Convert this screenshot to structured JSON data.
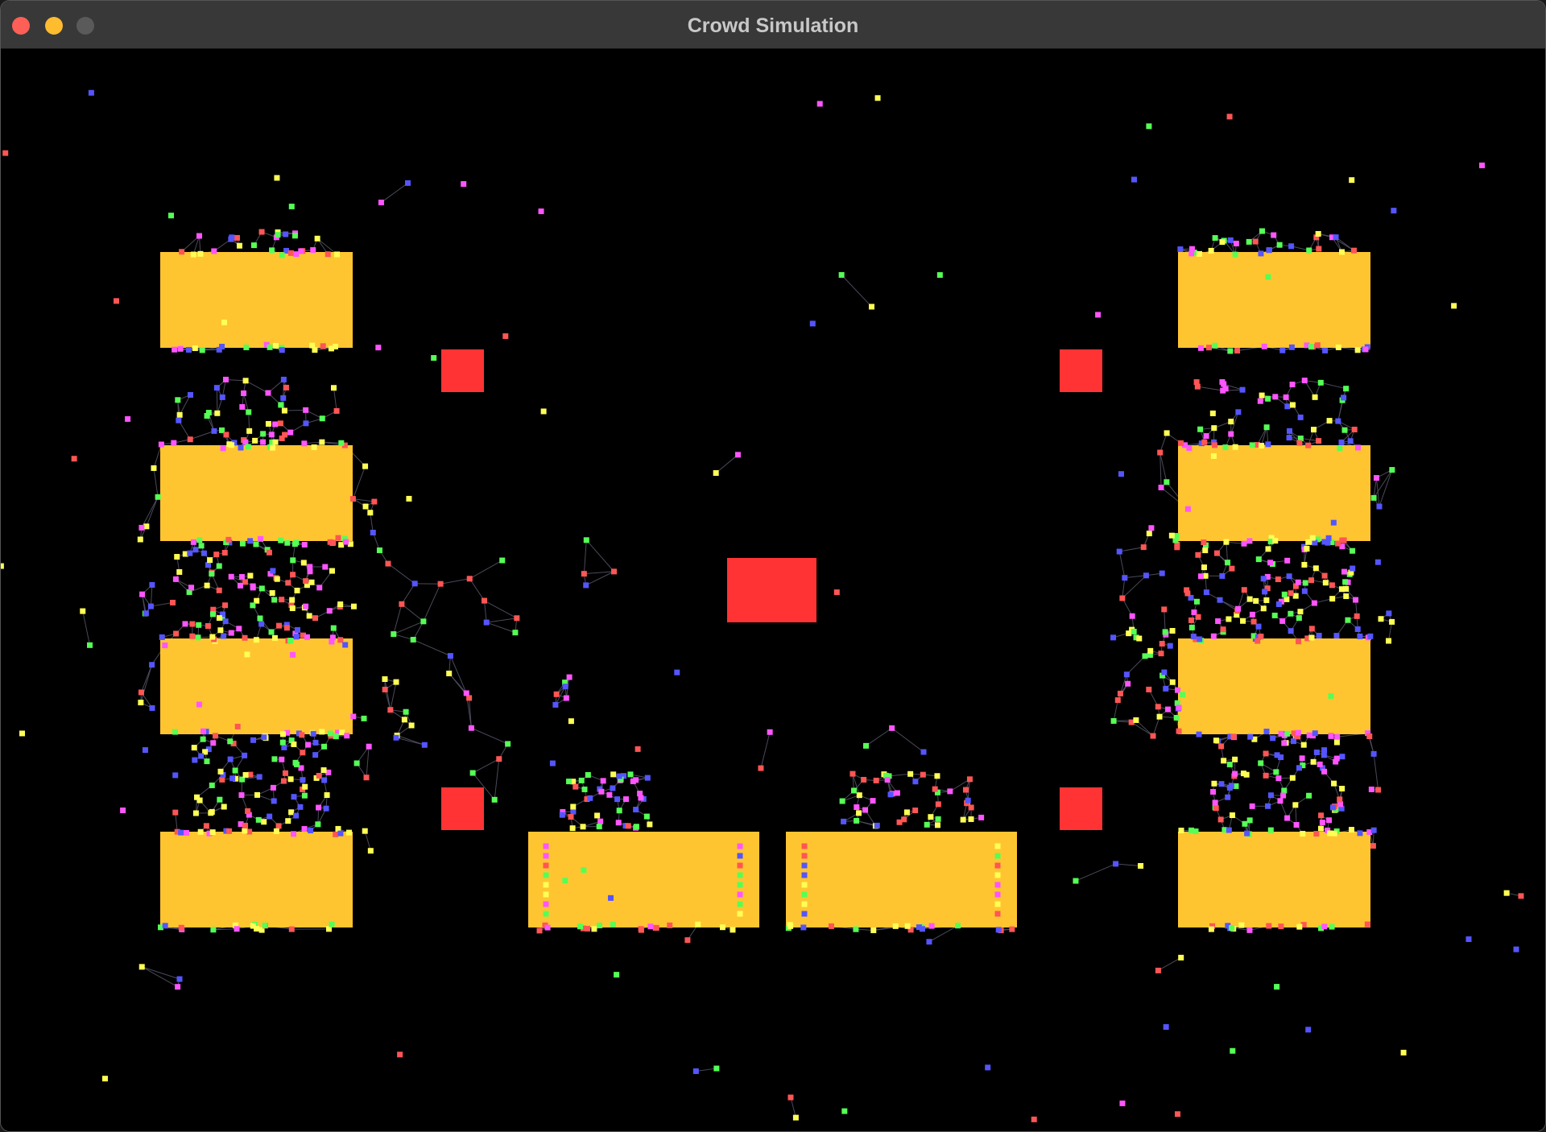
{
  "window": {
    "title": "Crowd Simulation"
  }
}
